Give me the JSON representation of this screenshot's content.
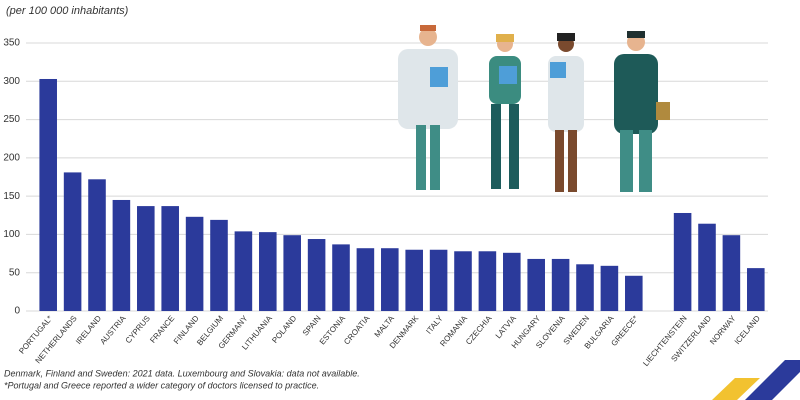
{
  "chart_data": {
    "type": "bar",
    "subtitle": "(per 100 000 inhabitants)",
    "categories": [
      "PORTUGAL*",
      "NETHERLANDS",
      "IRELAND",
      "AUSTRIA",
      "CYPRUS",
      "FRANCE",
      "FINLAND",
      "BELGIUM",
      "GERMANY",
      "LITHUANIA",
      "POLAND",
      "SPAIN",
      "ESTONIA",
      "CROATIA",
      "MALTA",
      "DENMARK",
      "ITALY",
      "ROMANIA",
      "CZECHIA",
      "LATVIA",
      "HUNGARY",
      "SLOVENIA",
      "SWEDEN",
      "BULGARIA",
      "GREECE*",
      null,
      "LIECHTENSTEIN",
      "SWITZERLAND",
      "NORWAY",
      "ICELAND"
    ],
    "values": [
      303,
      181,
      172,
      145,
      137,
      137,
      123,
      119,
      104,
      103,
      99,
      94,
      87,
      82,
      82,
      80,
      80,
      78,
      78,
      76,
      68,
      68,
      61,
      59,
      46,
      null,
      128,
      114,
      99,
      56
    ],
    "color": "#2b3a9b",
    "ylim": [
      0,
      350
    ],
    "yticks": [
      0,
      50,
      100,
      150,
      200,
      250,
      300,
      350
    ],
    "grid": true,
    "notes": [
      "Denmark, Finland and Sweden: 2021 data. Luxembourg and Slovakia: data not available.",
      "*Portugal and Greece reported a wider category of doctors licensed to practice."
    ]
  }
}
